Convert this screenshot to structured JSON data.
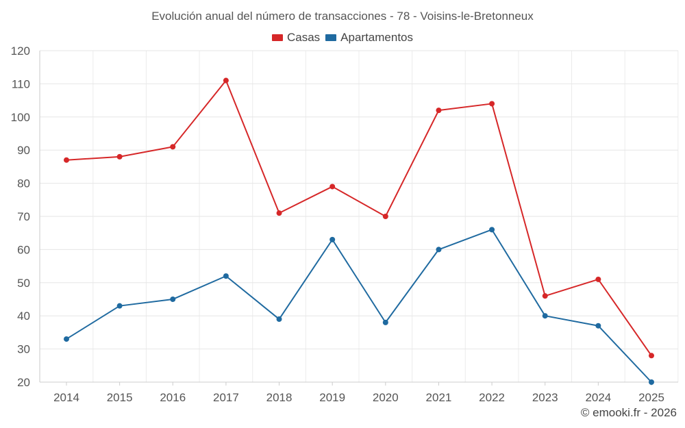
{
  "chart_data": {
    "type": "line",
    "title": "Evolución anual del número de transacciones - 78 - Voisins-le-Bretonneux",
    "categories": [
      "2014",
      "2015",
      "2016",
      "2017",
      "2018",
      "2019",
      "2020",
      "2021",
      "2022",
      "2023",
      "2024",
      "2025"
    ],
    "series": [
      {
        "name": "Casas",
        "color": "#d62728",
        "values": [
          87,
          88,
          91,
          111,
          71,
          79,
          70,
          102,
          104,
          46,
          51,
          28
        ]
      },
      {
        "name": "Apartamentos",
        "color": "#1f6aa0",
        "values": [
          33,
          43,
          45,
          52,
          39,
          63,
          38,
          60,
          66,
          40,
          37,
          20
        ]
      }
    ],
    "ylim": [
      20,
      120
    ],
    "yticks": [
      20,
      30,
      40,
      50,
      60,
      70,
      80,
      90,
      100,
      110,
      120
    ],
    "grid": true,
    "legend_position": "top-center",
    "xlabel": "",
    "ylabel": ""
  },
  "credit": "© emooki.fr - 2026"
}
